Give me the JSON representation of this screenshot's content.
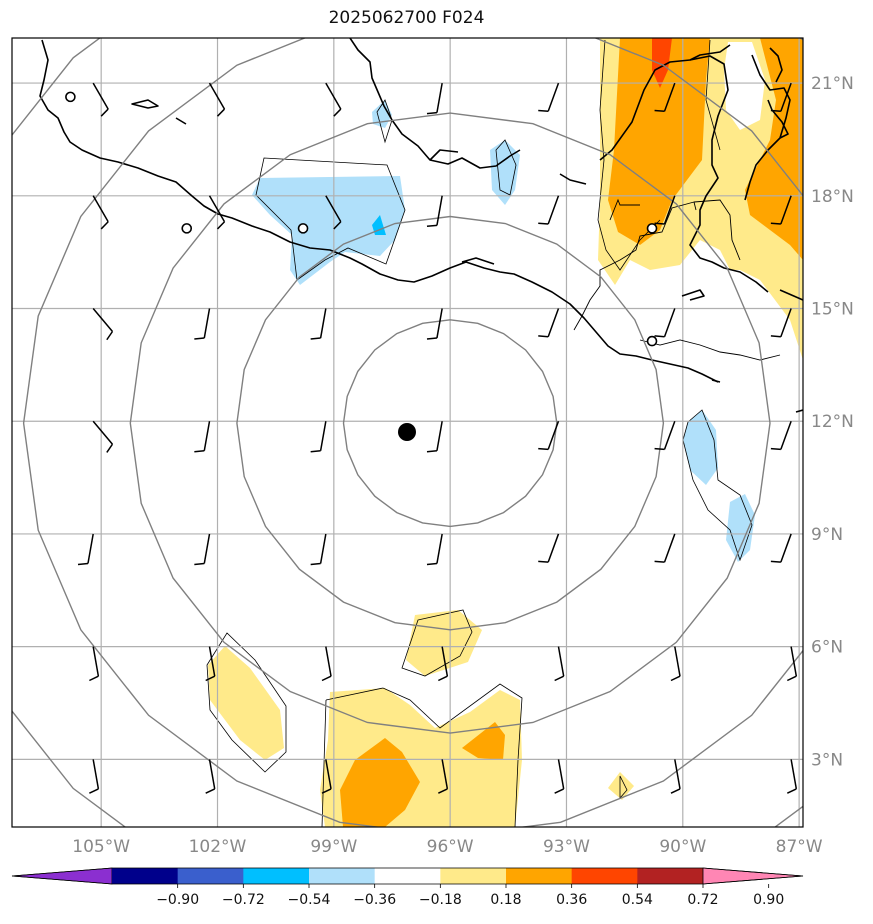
{
  "title": "2025062700 F024",
  "map": {
    "extent": {
      "lon": [
        -107.3,
        -86.9
      ],
      "lat": [
        1.2,
        22.2
      ]
    },
    "lat_ticks": [
      {
        "value": 21,
        "label": "21°N"
      },
      {
        "value": 18,
        "label": "18°N"
      },
      {
        "value": 15,
        "label": "15°N"
      },
      {
        "value": 12,
        "label": "12°N"
      },
      {
        "value": 9,
        "label": "9°N"
      },
      {
        "value": 6,
        "label": "6°N"
      },
      {
        "value": 3,
        "label": "3°N"
      }
    ],
    "lon_ticks": [
      {
        "value": -105,
        "label": "105°W"
      },
      {
        "value": -102,
        "label": "102°W"
      },
      {
        "value": -99,
        "label": "99°W"
      },
      {
        "value": -96,
        "label": "96°W"
      },
      {
        "value": -93,
        "label": "93°W"
      },
      {
        "value": -90,
        "label": "90°W"
      },
      {
        "value": -87,
        "label": "87°W"
      }
    ],
    "center": {
      "lon": -96.0,
      "lat": 11.95
    },
    "range_rings_deg": [
      2.75,
      5.5,
      8.25,
      11.0,
      13.75
    ],
    "grid": true,
    "colors": {
      "grid": "#b0b0b0",
      "rings": "#808080",
      "coast": "#000000"
    }
  },
  "colorbar": {
    "boundaries": [
      -0.9,
      -0.72,
      -0.54,
      -0.36,
      -0.18,
      0.18,
      0.36,
      0.54,
      0.72,
      0.9
    ],
    "labels": [
      "−0.90",
      "−0.72",
      "−0.54",
      "−0.36",
      "−0.18",
      "0.18",
      "0.36",
      "0.54",
      "0.72",
      "0.90"
    ],
    "colors": [
      "#8b2fd0",
      "#00008b",
      "#3a5fcd",
      "#00bfff",
      "#b0e0fa",
      "#ffffff",
      "#ffea8a",
      "#ffa500",
      "#ff4500",
      "#b22222",
      "#ff86b4"
    ]
  }
}
